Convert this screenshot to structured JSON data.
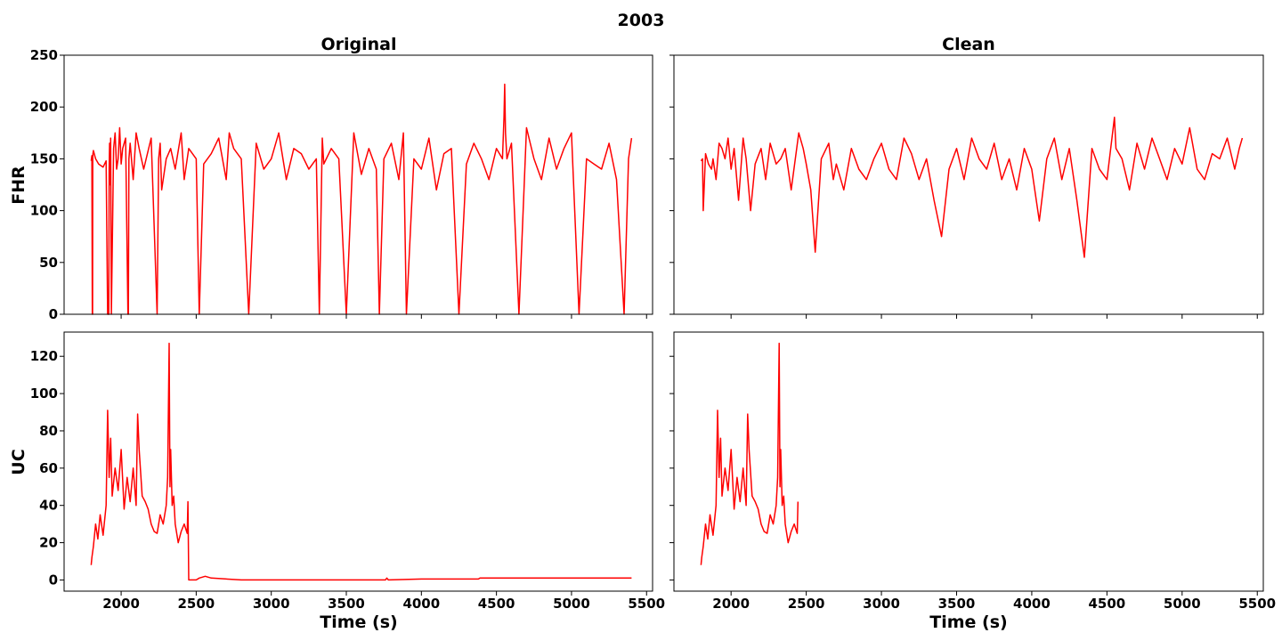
{
  "figure": {
    "suptitle": "2003",
    "column_titles": [
      "Original",
      "Clean"
    ],
    "row_labels": [
      "FHR",
      "UC"
    ],
    "xlabel": "Time (s)",
    "line_color": "#ff0000"
  },
  "chart_data": [
    {
      "type": "line",
      "panel": "Original FHR",
      "title": "Original",
      "ylabel": "FHR",
      "xlabel": "",
      "xlim": [
        1620,
        5540
      ],
      "ylim": [
        0,
        250
      ],
      "xticks": [
        2000,
        2500,
        3000,
        3500,
        4000,
        4500,
        5000,
        5500
      ],
      "yticks": [
        0,
        50,
        100,
        150,
        200,
        250
      ],
      "series": [
        {
          "color": "#ff0000",
          "x": [
            1800,
            1805,
            1808,
            1810,
            1811,
            1812,
            1815,
            1830,
            1850,
            1880,
            1900,
            1910,
            1918,
            1920,
            1923,
            1926,
            1930,
            1935,
            1950,
            1960,
            1970,
            1980,
            1990,
            2000,
            2010,
            2030,
            2045,
            2048,
            2052,
            2060,
            2080,
            2100,
            2120,
            2150,
            2200,
            2240,
            2250,
            2260,
            2270,
            2300,
            2330,
            2360,
            2400,
            2420,
            2450,
            2500,
            2520,
            2550,
            2600,
            2650,
            2700,
            2720,
            2750,
            2800,
            2850,
            2900,
            2950,
            3000,
            3050,
            3100,
            3150,
            3200,
            3250,
            3300,
            3320,
            3340,
            3350,
            3400,
            3450,
            3500,
            3550,
            3600,
            3650,
            3700,
            3720,
            3750,
            3800,
            3850,
            3880,
            3900,
            3950,
            4000,
            4050,
            4100,
            4150,
            4200,
            4250,
            4300,
            4350,
            4400,
            4450,
            4500,
            4540,
            4550,
            4555,
            4560,
            4570,
            4600,
            4650,
            4700,
            4750,
            4800,
            4850,
            4900,
            4950,
            5000,
            5050,
            5100,
            5150,
            5200,
            5250,
            5300,
            5350,
            5380,
            5400
          ],
          "y": [
            148,
            153,
            0,
            0,
            150,
            155,
            158,
            150,
            145,
            142,
            148,
            0,
            0,
            140,
            165,
            125,
            170,
            0,
            160,
            175,
            140,
            150,
            180,
            145,
            160,
            170,
            0,
            0,
            150,
            165,
            130,
            175,
            160,
            140,
            170,
            0,
            150,
            165,
            120,
            150,
            160,
            140,
            175,
            130,
            160,
            150,
            0,
            145,
            155,
            170,
            130,
            175,
            160,
            150,
            0,
            165,
            140,
            150,
            175,
            130,
            160,
            155,
            140,
            150,
            0,
            170,
            145,
            160,
            150,
            0,
            175,
            135,
            160,
            140,
            0,
            150,
            165,
            130,
            175,
            0,
            150,
            140,
            170,
            120,
            155,
            160,
            0,
            145,
            165,
            150,
            130,
            160,
            150,
            190,
            222,
            175,
            150,
            165,
            0,
            180,
            150,
            130,
            170,
            140,
            160,
            175,
            0,
            150,
            145,
            140,
            165,
            130,
            0,
            150,
            170
          ]
        }
      ]
    },
    {
      "type": "line",
      "panel": "Clean FHR",
      "title": "Clean",
      "ylabel": "",
      "xlabel": "",
      "xlim": [
        1620,
        5540
      ],
      "ylim": [
        0,
        250
      ],
      "xticks": [
        2000,
        2500,
        3000,
        3500,
        4000,
        4500,
        5000,
        5500
      ],
      "yticks": [
        0,
        50,
        100,
        150,
        200,
        250
      ],
      "series": [
        {
          "color": "#ff0000",
          "x": [
            1800,
            1810,
            1815,
            1830,
            1850,
            1870,
            1880,
            1900,
            1920,
            1940,
            1960,
            1980,
            2000,
            2020,
            2050,
            2080,
            2100,
            2130,
            2160,
            2200,
            2230,
            2260,
            2300,
            2330,
            2360,
            2400,
            2450,
            2480,
            2500,
            2530,
            2560,
            2600,
            2650,
            2680,
            2700,
            2750,
            2800,
            2850,
            2900,
            2950,
            3000,
            3050,
            3100,
            3150,
            3200,
            3250,
            3300,
            3350,
            3400,
            3450,
            3500,
            3550,
            3600,
            3650,
            3700,
            3750,
            3800,
            3850,
            3900,
            3950,
            4000,
            4050,
            4100,
            4150,
            4200,
            4250,
            4300,
            4350,
            4400,
            4450,
            4500,
            4550,
            4560,
            4600,
            4650,
            4700,
            4750,
            4800,
            4850,
            4900,
            4950,
            5000,
            5050,
            5100,
            5150,
            5200,
            5250,
            5300,
            5350,
            5380,
            5400
          ],
          "y": [
            148,
            150,
            100,
            155,
            145,
            140,
            150,
            130,
            165,
            160,
            150,
            170,
            140,
            160,
            110,
            170,
            150,
            100,
            145,
            160,
            130,
            165,
            145,
            150,
            160,
            120,
            175,
            160,
            145,
            120,
            60,
            150,
            165,
            130,
            145,
            120,
            160,
            140,
            130,
            150,
            165,
            140,
            130,
            170,
            155,
            130,
            150,
            110,
            75,
            140,
            160,
            130,
            170,
            150,
            140,
            165,
            130,
            150,
            120,
            160,
            140,
            90,
            150,
            170,
            130,
            160,
            110,
            55,
            160,
            140,
            130,
            190,
            160,
            150,
            120,
            165,
            140,
            170,
            150,
            130,
            160,
            145,
            180,
            140,
            130,
            155,
            150,
            170,
            140,
            160,
            170
          ]
        }
      ]
    },
    {
      "type": "line",
      "panel": "Original UC",
      "title": "",
      "ylabel": "UC",
      "xlabel": "Time (s)",
      "xlim": [
        1620,
        5540
      ],
      "ylim": [
        -6,
        133
      ],
      "xticks": [
        2000,
        2500,
        3000,
        3500,
        4000,
        4500,
        5000,
        5500
      ],
      "yticks": [
        0,
        20,
        40,
        60,
        80,
        100,
        120
      ],
      "series": [
        {
          "color": "#ff0000",
          "x": [
            1800,
            1805,
            1815,
            1830,
            1845,
            1860,
            1880,
            1900,
            1910,
            1920,
            1930,
            1940,
            1960,
            1980,
            2000,
            2020,
            2040,
            2060,
            2080,
            2100,
            2110,
            2120,
            2140,
            2160,
            2180,
            2200,
            2220,
            2240,
            2260,
            2280,
            2300,
            2310,
            2320,
            2325,
            2330,
            2340,
            2350,
            2360,
            2380,
            2400,
            2420,
            2440,
            2445,
            2450,
            2480,
            2500,
            2520,
            2560,
            2600,
            2800,
            3000,
            3500,
            3760,
            3770,
            3780,
            4000,
            4380,
            4390,
            4400,
            4600,
            5000,
            5400
          ],
          "y": [
            8,
            12,
            18,
            30,
            22,
            35,
            24,
            40,
            91,
            55,
            76,
            45,
            60,
            48,
            70,
            38,
            55,
            42,
            60,
            40,
            89,
            70,
            45,
            42,
            38,
            30,
            26,
            25,
            35,
            30,
            40,
            55,
            127,
            50,
            70,
            40,
            45,
            30,
            20,
            26,
            30,
            25,
            42,
            0,
            0,
            0,
            1,
            2,
            1,
            0,
            0,
            0,
            0,
            1,
            0,
            0.5,
            0.5,
            1,
            1,
            1,
            1,
            1
          ]
        }
      ]
    },
    {
      "type": "line",
      "panel": "Clean UC",
      "title": "",
      "ylabel": "",
      "xlabel": "Time (s)",
      "xlim": [
        1620,
        5540
      ],
      "ylim": [
        -6,
        133
      ],
      "xticks": [
        2000,
        2500,
        3000,
        3500,
        4000,
        4500,
        5000,
        5500
      ],
      "yticks": [
        0,
        20,
        40,
        60,
        80,
        100,
        120
      ],
      "series": [
        {
          "color": "#ff0000",
          "x": [
            1800,
            1805,
            1815,
            1830,
            1845,
            1860,
            1880,
            1900,
            1910,
            1920,
            1930,
            1940,
            1960,
            1980,
            2000,
            2020,
            2040,
            2060,
            2080,
            2100,
            2110,
            2120,
            2140,
            2160,
            2180,
            2200,
            2220,
            2240,
            2260,
            2280,
            2300,
            2310,
            2320,
            2325,
            2330,
            2340,
            2350,
            2360,
            2380,
            2400,
            2420,
            2440,
            2445
          ],
          "y": [
            8,
            12,
            18,
            30,
            22,
            35,
            24,
            40,
            91,
            55,
            76,
            45,
            60,
            48,
            70,
            38,
            55,
            42,
            60,
            40,
            89,
            70,
            45,
            42,
            38,
            30,
            26,
            25,
            35,
            30,
            40,
            55,
            127,
            50,
            70,
            40,
            45,
            30,
            20,
            26,
            30,
            25,
            42
          ]
        }
      ]
    }
  ]
}
